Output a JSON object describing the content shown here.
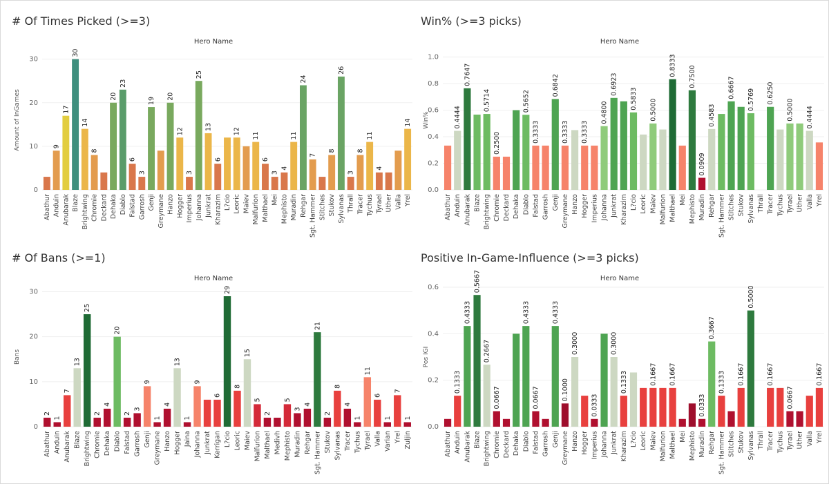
{
  "dashboard": {
    "panels": [
      {
        "title": "# Of Times Picked (>=3)"
      },
      {
        "title": "Win% (>=3 picks)"
      },
      {
        "title": "# Of Bans (>=1)"
      },
      {
        "title": "Positive In-Game-Influence (>=3 picks)"
      }
    ]
  },
  "chart_data": [
    {
      "type": "bar",
      "title": "# Of Times Picked (>=3)",
      "column_header": "Hero Name",
      "ylabel": "Amount of InGames",
      "ylim": [
        0,
        32
      ],
      "yticks": [
        0,
        10,
        20,
        30
      ],
      "tick_labels": [
        "0",
        "10",
        "20",
        "30"
      ],
      "categories": [
        "Abathur",
        "Anduin",
        "Anubarak",
        "Blaze",
        "Brightwing",
        "Chromie",
        "Deckard",
        "Dehaka",
        "Diablo",
        "Falstad",
        "Garrosh",
        "Genji",
        "Greymane",
        "Hanzo",
        "Hogger",
        "Imperius",
        "Johanna",
        "Junkrat",
        "Kharazim",
        "L?cio",
        "Leoric",
        "Maiev",
        "Malfurion",
        "Malthael",
        "Mei",
        "Mephisto",
        "Muradin",
        "Rehgar",
        "Sgt. Hammer",
        "Stitches",
        "Stukov",
        "Sylvanas",
        "Thrall",
        "Tracer",
        "Tychus",
        "Tyrael",
        "Uther",
        "Valla",
        "Yrel"
      ],
      "values": [
        3,
        9,
        17,
        30,
        14,
        8,
        4,
        20,
        23,
        6,
        3,
        19,
        9,
        20,
        12,
        3,
        25,
        13,
        6,
        12,
        12,
        10,
        11,
        6,
        3,
        4,
        11,
        24,
        7,
        3,
        8,
        26,
        3,
        8,
        11,
        4,
        4,
        9,
        14
      ],
      "value_labels": [
        "",
        "9",
        "17",
        "30",
        "14",
        "8",
        "",
        "20",
        "23",
        "6",
        "3",
        "19",
        "",
        "20",
        "12",
        "3",
        "25",
        "13",
        "6",
        "",
        "12",
        "",
        "11",
        "6",
        "3",
        "4",
        "11",
        "24",
        "7",
        "",
        "8",
        "26",
        "3",
        "8",
        "11",
        "4",
        "",
        "",
        "14"
      ],
      "colors": [
        "#d9774b",
        "#e39c4e",
        "#e2cd3f",
        "#3f8f7e",
        "#ebb649",
        "#e39c4e",
        "#d9774b",
        "#79a95e",
        "#5a9c6a",
        "#d9774b",
        "#d9774b",
        "#79a95e",
        "#e39c4e",
        "#79a95e",
        "#ebb649",
        "#d9774b",
        "#79a95e",
        "#ebb649",
        "#d9774b",
        "#ebb649",
        "#ebb649",
        "#e39c4e",
        "#ebb649",
        "#d9774b",
        "#d9774b",
        "#d9774b",
        "#ebb649",
        "#6aa464",
        "#e39c4e",
        "#d9774b",
        "#e39c4e",
        "#6aa464",
        "#d9774b",
        "#e39c4e",
        "#ebb649",
        "#d9774b",
        "#d9774b",
        "#e39c4e",
        "#ebb649"
      ]
    },
    {
      "type": "bar",
      "title": "Win% (>=3 picks)",
      "column_header": "Hero Name",
      "ylabel": "Win%",
      "ylim": [
        0,
        1.05
      ],
      "yticks": [
        0,
        0.2,
        0.4,
        0.6,
        0.8,
        1.0
      ],
      "tick_labels": [
        "0.0",
        "0.2",
        "0.4",
        "0.6",
        "0.8",
        "1.0"
      ],
      "categories": [
        "Abathur",
        "Anduin",
        "Anubarak",
        "Blaze",
        "Brightwing",
        "Chromie",
        "Deckard",
        "Dehaka",
        "Diablo",
        "Falstad",
        "Garrosh",
        "Genji",
        "Greymane",
        "Hanzo",
        "Hogger",
        "Imperius",
        "Johanna",
        "Junkrat",
        "Kharazim",
        "L?cio",
        "Leoric",
        "Maiev",
        "Malfurion",
        "Malthael",
        "Mei",
        "Mephisto",
        "Muradin",
        "Rehgar",
        "Sgt. Hammer",
        "Stitches",
        "Stukov",
        "Sylvanas",
        "Thrall",
        "Tracer",
        "Tychus",
        "Tyrael",
        "Uther",
        "Valla",
        "Yrel"
      ],
      "values": [
        0.3333,
        0.4444,
        0.7647,
        0.5667,
        0.5714,
        0.25,
        0.25,
        0.6,
        0.5652,
        0.3333,
        0.3333,
        0.6842,
        0.3333,
        0.45,
        0.3333,
        0.3333,
        0.48,
        0.6923,
        0.6667,
        0.5833,
        0.4167,
        0.5,
        0.4545,
        0.8333,
        0.3333,
        0.75,
        0.0909,
        0.4583,
        0.5714,
        0.6667,
        0.625,
        0.5769,
        0.0,
        0.625,
        0.4545,
        0.5,
        0.5,
        0.4444,
        0.3571
      ],
      "value_labels": [
        "",
        "0.4444",
        "0.7647",
        "",
        "0.5714",
        "0.2500",
        "",
        "",
        "0.5652",
        "0.3333",
        "",
        "0.6842",
        "0.3333",
        "",
        "0.3333",
        "",
        "0.4800",
        "0.6923",
        "",
        "0.5833",
        "",
        "0.5000",
        "",
        "0.8333",
        "",
        "0.7500",
        "0.0909",
        "0.4583",
        "",
        "0.6667",
        "",
        "0.5769",
        "",
        "0.6250",
        "",
        "0.5000",
        "",
        "0.4444",
        ""
      ],
      "colors": [
        "#f6836a",
        "#cdd8c2",
        "#2e7a3e",
        "#6dbb62",
        "#6dbb62",
        "#f6836a",
        "#f6836a",
        "#4ea452",
        "#6dbb62",
        "#f6836a",
        "#f6836a",
        "#4ea452",
        "#f6836a",
        "#cdd8c2",
        "#f6836a",
        "#f6836a",
        "#8fcb7b",
        "#4ea452",
        "#4ea452",
        "#6dbb62",
        "#cdd8c2",
        "#8fcb7b",
        "#cdd8c2",
        "#1f6b35",
        "#f6836a",
        "#2e7a3e",
        "#b0102f",
        "#cdd8c2",
        "#6dbb62",
        "#4ea452",
        "#4ea452",
        "#6dbb62",
        "#ffffff",
        "#4ea452",
        "#cdd8c2",
        "#8fcb7b",
        "#8fcb7b",
        "#cdd8c2",
        "#f6836a"
      ]
    },
    {
      "type": "bar",
      "title": "# Of Bans (>=1)",
      "column_header": "Hero Name",
      "ylabel": "Bans",
      "ylim": [
        0,
        31
      ],
      "yticks": [
        0,
        10,
        20,
        30
      ],
      "tick_labels": [
        "0",
        "10",
        "20",
        "30"
      ],
      "categories": [
        "Abathur",
        "Anduin",
        "Anubarak",
        "Blaze",
        "Brightwing",
        "Chromie",
        "Dehaka",
        "Diablo",
        "Falstad",
        "Garrosh",
        "Genji",
        "Greymane",
        "Hanzo",
        "Hogger",
        "Jaina",
        "Johanna",
        "Junkrat",
        "Kerrigan",
        "L?cio",
        "Leoric",
        "Maiev",
        "Malfurion",
        "Malthael",
        "Medivh",
        "Mephisto",
        "Muradin",
        "Rehgar",
        "Sgt. Hammer",
        "Stukov",
        "Sylvanas",
        "Tracer",
        "Tychus",
        "Tyrael",
        "Valla",
        "Varian",
        "Yrel",
        "Zuljin"
      ],
      "values": [
        2,
        1,
        7,
        13,
        25,
        2,
        4,
        20,
        2,
        3,
        9,
        1,
        4,
        13,
        1,
        9,
        6,
        6,
        29,
        8,
        15,
        5,
        2,
        2,
        5,
        3,
        4,
        21,
        2,
        8,
        4,
        1,
        11,
        6,
        1,
        7,
        1
      ],
      "value_labels": [
        "2",
        "1",
        "7",
        "13",
        "25",
        "2",
        "4",
        "20",
        "2",
        "3",
        "9",
        "1",
        "4",
        "13",
        "1",
        "9",
        "",
        "6",
        "29",
        "8",
        "15",
        "5",
        "2",
        "",
        "5",
        "3",
        "4",
        "21",
        "2",
        "8",
        "4",
        "1",
        "11",
        "6",
        "1",
        "7",
        "1"
      ],
      "colors": [
        "#b0102f",
        "#b0102f",
        "#e8403e",
        "#cdd8c2",
        "#1f6b35",
        "#b0102f",
        "#b0102f",
        "#6dbb62",
        "#b0102f",
        "#b0102f",
        "#f6836a",
        "#b0102f",
        "#b0102f",
        "#cdd8c2",
        "#b0102f",
        "#f6836a",
        "#e8403e",
        "#e8403e",
        "#1f6b35",
        "#e8403e",
        "#cdd8c2",
        "#d42a39",
        "#b0102f",
        "#b0102f",
        "#d42a39",
        "#b0102f",
        "#b0102f",
        "#2e7a3e",
        "#b0102f",
        "#e8403e",
        "#b0102f",
        "#b0102f",
        "#f6836a",
        "#e8403e",
        "#b0102f",
        "#e8403e",
        "#b0102f"
      ]
    },
    {
      "type": "bar",
      "title": "Positive In-Game-Influence (>=3 picks)",
      "column_header": "Hero Name",
      "ylabel": "Pos IGI",
      "ylim": [
        0,
        0.6
      ],
      "yticks": [
        0,
        0.2,
        0.4,
        0.6
      ],
      "tick_labels": [
        "0.0",
        "0.2",
        "0.4",
        "0.6"
      ],
      "categories": [
        "Abathur",
        "Anduin",
        "Anubarak",
        "Blaze",
        "Brightwing",
        "Chromie",
        "Deckard",
        "Dehaka",
        "Diablo",
        "Falstad",
        "Garrosh",
        "Genji",
        "Greymane",
        "Hanzo",
        "Hogger",
        "Imperius",
        "Johanna",
        "Junkrat",
        "Kharazim",
        "L?cio",
        "Leoric",
        "Maiev",
        "Malfurion",
        "Malthael",
        "Mei",
        "Mephisto",
        "Muradin",
        "Rehgar",
        "Sgt. Hammer",
        "Stitches",
        "Stukov",
        "Sylvanas",
        "Thrall",
        "Tracer",
        "Tychus",
        "Tyrael",
        "Uther",
        "Valla",
        "Yrel"
      ],
      "values": [
        0.0333,
        0.1333,
        0.4333,
        0.5667,
        0.2667,
        0.0667,
        0.0333,
        0.4,
        0.4333,
        0.0667,
        0.0333,
        0.4333,
        0.1,
        0.3,
        0.1333,
        0.0333,
        0.4,
        0.3,
        0.1333,
        0.2333,
        0.1667,
        0.1667,
        0.1667,
        0.1667,
        0.0333,
        0.1,
        0.0333,
        0.3667,
        0.1333,
        0.0667,
        0.1667,
        0.5,
        0.0,
        0.1667,
        0.1667,
        0.0667,
        0.0667,
        0.1333,
        0.1667
      ],
      "value_labels": [
        "",
        "0.1333",
        "0.4333",
        "0.5667",
        "0.2667",
        "0.0667",
        "",
        "",
        "0.4333",
        "0.0667",
        "",
        "0.4333",
        "0.1000",
        "0.3000",
        "",
        "0.0333",
        "",
        "0.3000",
        "0.1333",
        "",
        "",
        "0.1667",
        "",
        "0.1667",
        "",
        "",
        "0.0333",
        "0.3667",
        "0.1333",
        "",
        "0.1667",
        "0.5000",
        "",
        "0.1667",
        "",
        "0.0667",
        "",
        "",
        "0.1667"
      ],
      "colors": [
        "#b0102f",
        "#e8403e",
        "#4ea452",
        "#2e7a3e",
        "#cdd8c2",
        "#b0102f",
        "#b0102f",
        "#4ea452",
        "#4ea452",
        "#b0102f",
        "#b0102f",
        "#4ea452",
        "#9e0e2c",
        "#cdd8c2",
        "#e8403e",
        "#b0102f",
        "#4ea452",
        "#cdd8c2",
        "#e8403e",
        "#cdd8c2",
        "#e8403e",
        "#e8403e",
        "#e8403e",
        "#e8403e",
        "#b0102f",
        "#9e0e2c",
        "#b0102f",
        "#6dbb62",
        "#e8403e",
        "#b0102f",
        "#e8403e",
        "#2e7a3e",
        "#ffffff",
        "#e8403e",
        "#e8403e",
        "#b0102f",
        "#b0102f",
        "#e8403e",
        "#e8403e"
      ]
    }
  ]
}
